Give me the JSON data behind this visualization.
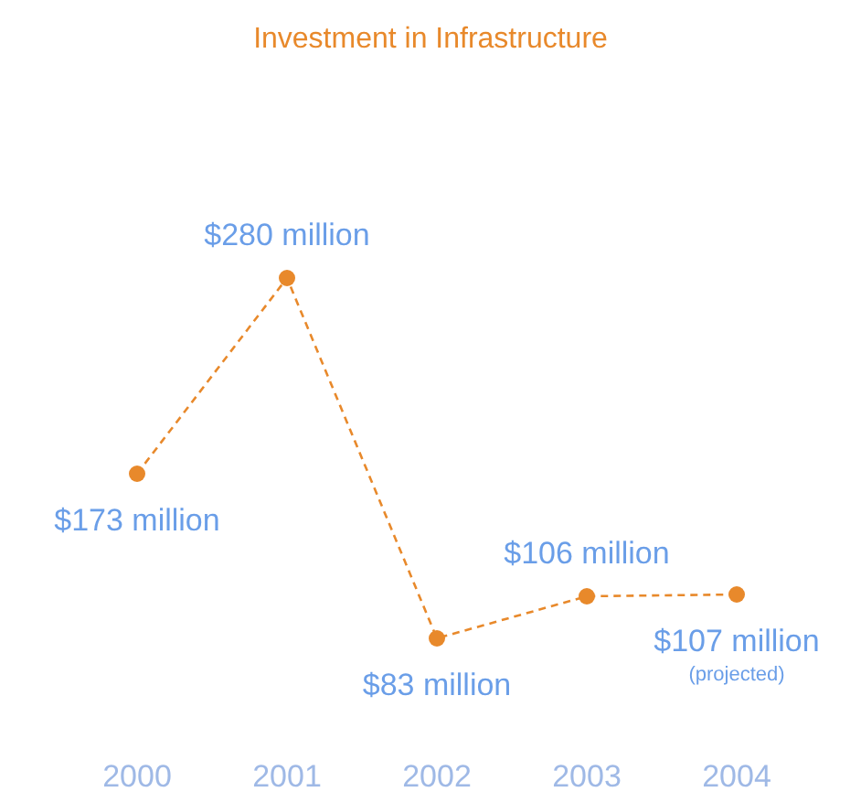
{
  "chart_data": {
    "type": "line",
    "title": "Investment in Infrastructure",
    "categories": [
      "2000",
      "2001",
      "2002",
      "2003",
      "2004"
    ],
    "series": [
      {
        "color": "#e8892b",
        "values": [
          173,
          280,
          83,
          106,
          107
        ],
        "value_labels": [
          "$173 million",
          "$280 million",
          "$83 million",
          "$106 million",
          "$107 million"
        ]
      }
    ],
    "annotations": [
      "(projected)"
    ],
    "marker": "circle",
    "line_style": "dashed"
  }
}
